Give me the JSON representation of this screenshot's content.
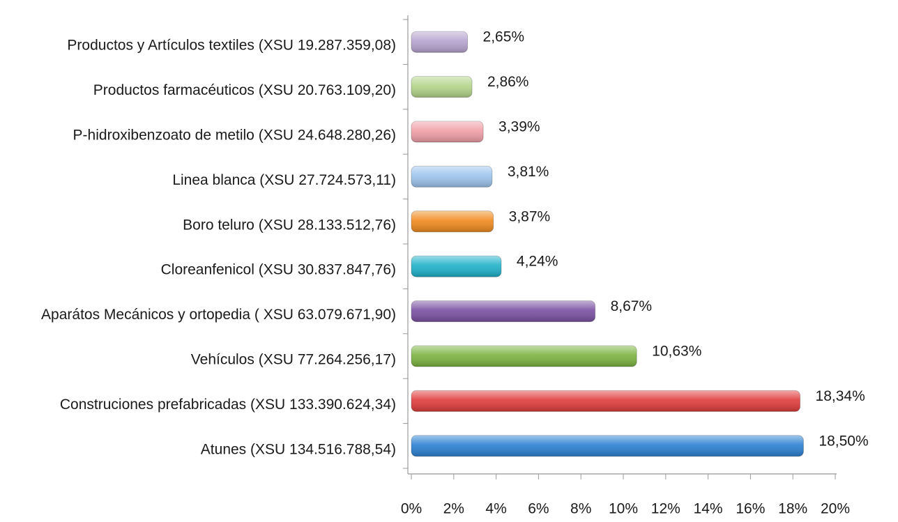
{
  "chart_data": {
    "type": "bar",
    "orientation": "horizontal",
    "categories": [
      "Productos y Artículos textiles (XSU 19.287.359,08)",
      "Productos farmacéuticos (XSU 20.763.109,20)",
      "P-hidroxibenzoato de metilo (XSU 24.648.280,26)",
      "Linea blanca (XSU 27.724.573,11)",
      "Boro teluro (XSU 28.133.512,76)",
      "Cloreanfenicol (XSU 30.837.847,76)",
      "Aparátos Mecánicos y ortopedia ( XSU 63.079.671,90)",
      "Vehículos (XSU 77.264.256,17)",
      "Construciones prefabricadas (XSU 133.390.624,34)",
      "Atunes (XSU 134.516.788,54)"
    ],
    "values": [
      2.65,
      2.86,
      3.39,
      3.81,
      3.87,
      4.24,
      8.67,
      10.63,
      18.34,
      18.5
    ],
    "value_labels": [
      "2,65%",
      "2,86%",
      "3,39%",
      "3,81%",
      "3,87%",
      "4,24%",
      "8,67%",
      "10,63%",
      "18,34%",
      "18,50%"
    ],
    "colors": [
      "#b7a3cf",
      "#b3d489",
      "#f09ea6",
      "#9cc3ec",
      "#f08a1e",
      "#1fb1c9",
      "#7a50a2",
      "#7cb33f",
      "#e03b3b",
      "#2a80d2"
    ],
    "xlim": [
      0,
      20
    ],
    "xticks": [
      {
        "value": 0,
        "label": "0%"
      },
      {
        "value": 2,
        "label": "2%"
      },
      {
        "value": 4,
        "label": "4%"
      },
      {
        "value": 6,
        "label": "6%"
      },
      {
        "value": 8,
        "label": "8%"
      },
      {
        "value": 10,
        "label": "10%"
      },
      {
        "value": 12,
        "label": "12%"
      },
      {
        "value": 14,
        "label": "14%"
      },
      {
        "value": 16,
        "label": "16%"
      },
      {
        "value": 18,
        "label": "18%"
      },
      {
        "value": 20,
        "label": "20%"
      }
    ],
    "grid": false
  }
}
